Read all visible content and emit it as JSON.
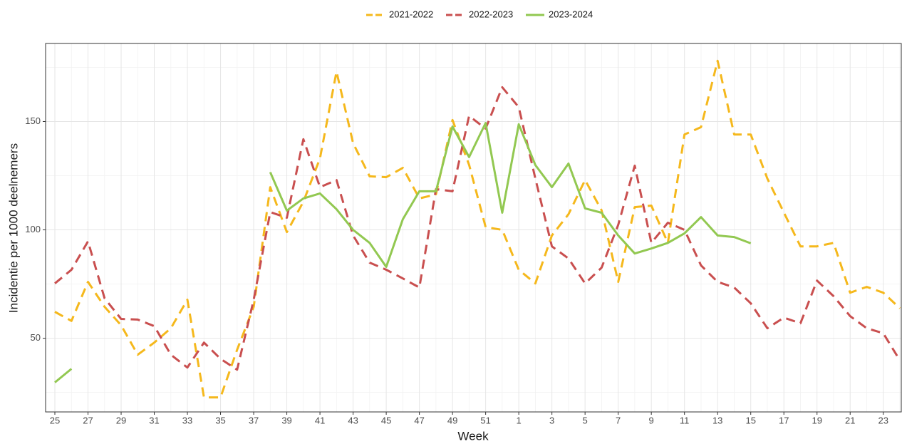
{
  "chart_data": {
    "type": "line",
    "x_label": "Week",
    "y_label": "Incidentie per 1000 deelnemers",
    "legend": "top",
    "grid": true,
    "categories": [
      "25",
      null,
      "27",
      null,
      "29",
      null,
      "31",
      null,
      "33",
      null,
      "35",
      null,
      "37",
      null,
      "39",
      null,
      "41",
      null,
      "43",
      null,
      "45",
      null,
      "47",
      null,
      "49",
      null,
      "51",
      null,
      "1",
      null,
      "3",
      null,
      "5",
      null,
      "7",
      null,
      "9",
      null,
      "11",
      null,
      "13",
      null,
      "15",
      null,
      "17",
      null,
      "19",
      null,
      "21",
      null,
      "23",
      null
    ],
    "ylim": [
      16,
      186
    ],
    "yticks": [
      50,
      100,
      150
    ],
    "series": [
      {
        "name": "2021-2022",
        "color": "#f5b81c",
        "dashed": true,
        "values": [
          62.2,
          58,
          76,
          64.5,
          56,
          42.4,
          48,
          54.6,
          67.8,
          22.7,
          22.7,
          44.7,
          64.5,
          119.7,
          99,
          113,
          133,
          173,
          140,
          124.7,
          124.3,
          128.6,
          114.5,
          116.4,
          150.7,
          130,
          101.3,
          100,
          81.6,
          75.3,
          97.4,
          107.2,
          123,
          109,
          76,
          110.5,
          111.2,
          94,
          144,
          147.4,
          178,
          144,
          144,
          123.7,
          108,
          92.4,
          92.4,
          94,
          71,
          73.7,
          71,
          63.8
        ]
      },
      {
        "name": "2022-2023",
        "color": "#c94f4f",
        "dashed": true,
        "values": [
          75.3,
          81.6,
          94.7,
          68.4,
          58.9,
          58.6,
          55.6,
          42.4,
          36.5,
          48,
          40.5,
          35.5,
          67.8,
          108.2,
          105.6,
          141.8,
          119.7,
          123,
          97.4,
          84.9,
          81.6,
          77.6,
          73.4,
          118.8,
          117.8,
          152.6,
          146.7,
          165.8,
          156.6,
          123.7,
          92.4,
          86.8,
          75.3,
          82.6,
          102.3,
          129.6,
          94,
          103.3,
          100,
          83.6,
          76,
          73.4,
          66.1,
          54.6,
          59.5,
          56.9,
          76.6,
          69.4,
          60.2,
          54.6,
          52.3,
          39.8
        ]
      },
      {
        "name": "2023-2024",
        "color": "#92c851",
        "dashed": false,
        "values": [
          29.6,
          35.9,
          null,
          null,
          null,
          null,
          null,
          null,
          null,
          null,
          null,
          null,
          null,
          126.6,
          108.9,
          114.5,
          116.8,
          109.5,
          100,
          94,
          82.9,
          104.9,
          117.8,
          117.8,
          147.7,
          133.6,
          149.3,
          107.9,
          148.7,
          129.9,
          119.7,
          130.6,
          109.9,
          107.9,
          97.4,
          89.1,
          91.4,
          94,
          98.4,
          105.9,
          97.4,
          96.7,
          93.8,
          null,
          null,
          null,
          null,
          null,
          null,
          null,
          null,
          null
        ]
      }
    ]
  }
}
